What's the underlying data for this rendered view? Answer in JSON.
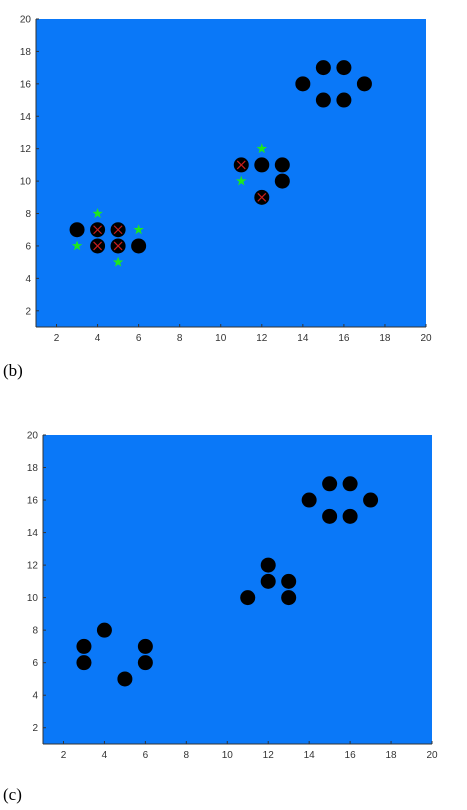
{
  "colors": {
    "plot_background": "#0A78F8",
    "point": "#000000",
    "cross": "#C81E1E",
    "star": "#1EE81E",
    "axis": "#333333"
  },
  "chart_data": [
    {
      "panel_label": "(b)",
      "type": "scatter",
      "xlim": [
        1,
        20
      ],
      "ylim": [
        1,
        20
      ],
      "x_ticks": [
        2,
        4,
        6,
        8,
        10,
        12,
        14,
        16,
        18,
        20
      ],
      "y_ticks": [
        2,
        4,
        6,
        8,
        10,
        12,
        14,
        16,
        18,
        20
      ],
      "grid": false,
      "series": [
        {
          "marker": "filled-circle",
          "points": [
            [
              3,
              7
            ],
            [
              4,
              7
            ],
            [
              5,
              7
            ],
            [
              4,
              6
            ],
            [
              5,
              6
            ],
            [
              6,
              6
            ],
            [
              11,
              11
            ],
            [
              12,
              11
            ],
            [
              13,
              11
            ],
            [
              13,
              10
            ],
            [
              12,
              9
            ],
            [
              14,
              16
            ],
            [
              15,
              17
            ],
            [
              16,
              17
            ],
            [
              17,
              16
            ],
            [
              15,
              15
            ],
            [
              16,
              15
            ]
          ]
        },
        {
          "marker": "x",
          "points": [
            [
              4,
              7
            ],
            [
              5,
              7
            ],
            [
              4,
              6
            ],
            [
              5,
              6
            ],
            [
              11,
              11
            ],
            [
              12,
              9
            ]
          ]
        },
        {
          "marker": "star",
          "points": [
            [
              4,
              8
            ],
            [
              3,
              6
            ],
            [
              6,
              7
            ],
            [
              5,
              5
            ],
            [
              12,
              12
            ],
            [
              11,
              10
            ]
          ]
        }
      ]
    },
    {
      "panel_label": "(c)",
      "type": "scatter",
      "xlim": [
        1,
        20
      ],
      "ylim": [
        1,
        20
      ],
      "x_ticks": [
        2,
        4,
        6,
        8,
        10,
        12,
        14,
        16,
        18,
        20
      ],
      "y_ticks": [
        2,
        4,
        6,
        8,
        10,
        12,
        14,
        16,
        18,
        20
      ],
      "grid": false,
      "series": [
        {
          "marker": "filled-circle",
          "points": [
            [
              3,
              7
            ],
            [
              3,
              6
            ],
            [
              4,
              8
            ],
            [
              5,
              5
            ],
            [
              6,
              7
            ],
            [
              6,
              6
            ],
            [
              11,
              10
            ],
            [
              12,
              12
            ],
            [
              12,
              11
            ],
            [
              13,
              11
            ],
            [
              13,
              10
            ],
            [
              14,
              16
            ],
            [
              15,
              17
            ],
            [
              16,
              17
            ],
            [
              17,
              16
            ],
            [
              15,
              15
            ],
            [
              16,
              15
            ]
          ]
        }
      ]
    }
  ]
}
